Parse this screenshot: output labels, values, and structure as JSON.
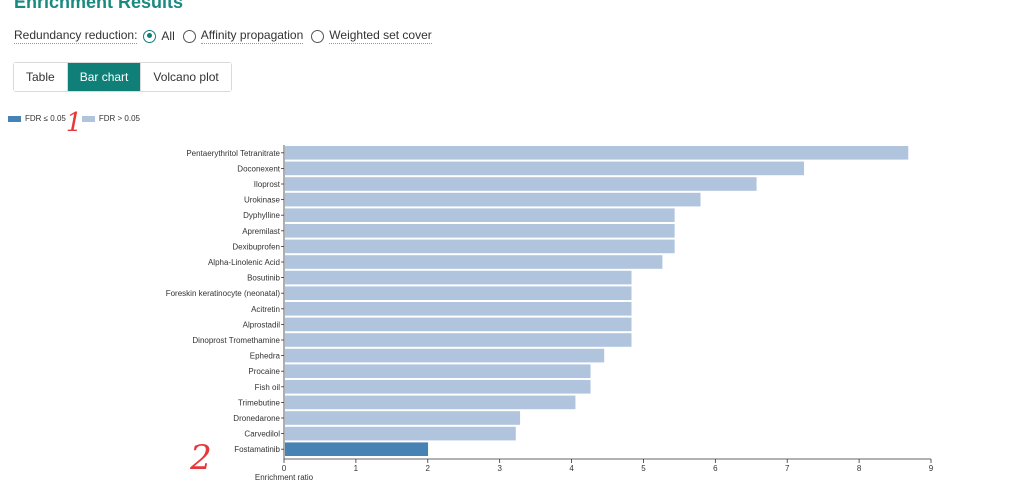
{
  "page": {
    "title": "Enrichment Results"
  },
  "redundancy": {
    "label": "Redundancy reduction:",
    "options": [
      {
        "label": "All",
        "checked": true
      },
      {
        "label": "Affinity propagation",
        "checked": false
      },
      {
        "label": "Weighted set cover",
        "checked": false
      }
    ]
  },
  "tabs": [
    {
      "label": "Table",
      "active": false
    },
    {
      "label": "Bar chart",
      "active": true
    },
    {
      "label": "Volcano plot",
      "active": false
    }
  ],
  "legend": [
    {
      "label": "FDR ≤ 0.05",
      "color": "#4682b4"
    },
    {
      "label": "FDR > 0.05",
      "color": "#b0c4de"
    }
  ],
  "annotations": [
    "1",
    "2"
  ],
  "chart_data": {
    "type": "bar",
    "orientation": "horizontal",
    "xlabel": "Enrichment ratio",
    "xlim": [
      0,
      9
    ],
    "xticks": [
      0,
      1,
      2,
      3,
      4,
      5,
      6,
      7,
      8,
      9
    ],
    "categories": [
      "Pentaerythritol Tetranitrate",
      "Doconexent",
      "Iloprost",
      "Urokinase",
      "Dyphylline",
      "Apremilast",
      "Dexibuprofen",
      "Alpha-Linolenic Acid",
      "Bosutinib",
      "Foreskin keratinocyte (neonatal)",
      "Acitretin",
      "Alprostadil",
      "Dinoprost Tromethamine",
      "Ephedra",
      "Procaine",
      "Fish oil",
      "Trimebutine",
      "Dronedarone",
      "Carvedilol",
      "Fostamatinib"
    ],
    "values": [
      8.67,
      7.22,
      6.56,
      5.78,
      5.42,
      5.42,
      5.42,
      5.25,
      4.82,
      4.82,
      4.82,
      4.82,
      4.82,
      4.44,
      4.25,
      4.25,
      4.04,
      3.27,
      3.21,
      1.99
    ],
    "significant": [
      false,
      false,
      false,
      false,
      false,
      false,
      false,
      false,
      false,
      false,
      false,
      false,
      false,
      false,
      false,
      false,
      false,
      false,
      false,
      true
    ],
    "colors": {
      "significant": "#4682b4",
      "not_significant": "#b0c4de"
    }
  }
}
